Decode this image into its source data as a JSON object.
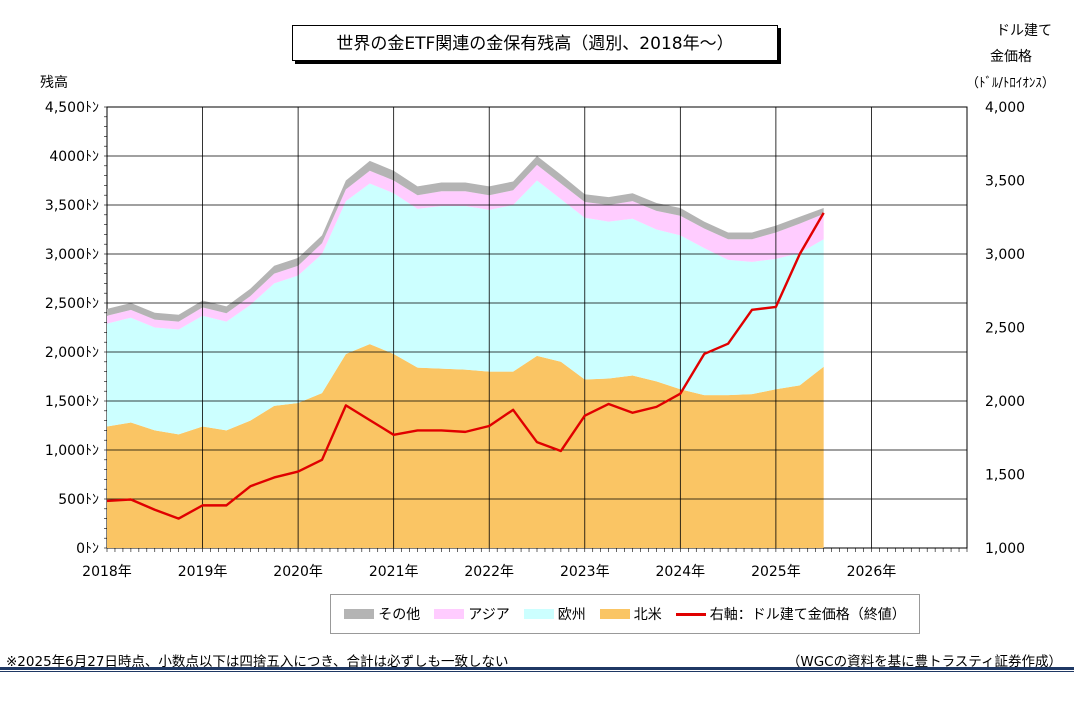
{
  "chart_data": {
    "type": "area",
    "title": "世界の金ETF関連の金保有残高（週別、2018年～）",
    "ylabel_left": "残高",
    "ylabel_right": [
      "ドル建て",
      "金価格",
      "（ﾄﾞﾙ/ﾄﾛｲｵﾝｽ）"
    ],
    "left_axis": {
      "range": [
        0,
        4500
      ],
      "ticks": [
        0,
        500,
        1000,
        1500,
        2000,
        2500,
        3000,
        3500,
        4000,
        4500
      ],
      "tick_labels": [
        "0ﾄﾝ",
        "500ﾄﾝ",
        "1,000ﾄﾝ",
        "1,500ﾄﾝ",
        "2,000ﾄﾝ",
        "2,500ﾄﾝ",
        "3,000ﾄﾝ",
        "3,500ﾄﾝ",
        "4000ﾄﾝ",
        "4,500ﾄﾝ"
      ]
    },
    "right_axis": {
      "range": [
        1000,
        4000
      ],
      "ticks": [
        1000,
        1500,
        2000,
        2500,
        3000,
        3500,
        4000
      ],
      "tick_labels": [
        "1,000",
        "1,500",
        "2,000",
        "2,500",
        "3,000",
        "3,500",
        "4,000"
      ]
    },
    "x_axis": {
      "range": [
        2018.0,
        2027.0
      ],
      "ticks": [
        2018,
        2019,
        2020,
        2021,
        2022,
        2023,
        2024,
        2025,
        2026,
        2027
      ],
      "tick_labels": [
        "2018年",
        "2019年",
        "2020年",
        "2021年",
        "2022年",
        "2023年",
        "2024年",
        "2025年",
        "2026年"
      ]
    },
    "grid": true,
    "legend_position": "bottom",
    "x": [
      2018.0,
      2018.25,
      2018.5,
      2018.75,
      2019.0,
      2019.25,
      2019.5,
      2019.75,
      2020.0,
      2020.25,
      2020.5,
      2020.75,
      2021.0,
      2021.25,
      2021.5,
      2021.75,
      2022.0,
      2022.25,
      2022.5,
      2022.75,
      2023.0,
      2023.25,
      2023.5,
      2023.75,
      2024.0,
      2024.25,
      2024.5,
      2024.75,
      2025.0,
      2025.25,
      2025.5
    ],
    "series": [
      {
        "name": "北米",
        "color": "#fac564",
        "values": [
          1240,
          1280,
          1200,
          1160,
          1240,
          1200,
          1300,
          1450,
          1480,
          1580,
          1980,
          2080,
          1980,
          1840,
          1830,
          1820,
          1800,
          1800,
          1960,
          1900,
          1720,
          1730,
          1760,
          1700,
          1620,
          1560,
          1560,
          1570,
          1620,
          1660,
          1850
        ]
      },
      {
        "name": "欧州",
        "color": "#ccffff",
        "values": [
          1050,
          1070,
          1050,
          1070,
          1130,
          1110,
          1180,
          1250,
          1300,
          1420,
          1560,
          1640,
          1640,
          1620,
          1660,
          1670,
          1650,
          1700,
          1790,
          1660,
          1650,
          1600,
          1600,
          1550,
          1570,
          1500,
          1380,
          1350,
          1330,
          1350,
          1300
        ]
      },
      {
        "name": "アジア",
        "color": "#ffccff",
        "values": [
          80,
          80,
          80,
          80,
          85,
          85,
          90,
          100,
          100,
          110,
          120,
          130,
          130,
          140,
          150,
          150,
          150,
          150,
          160,
          160,
          160,
          170,
          180,
          190,
          200,
          200,
          210,
          230,
          270,
          300,
          260
        ]
      },
      {
        "name": "その他",
        "color": "#b4b4b4",
        "values": [
          70,
          70,
          70,
          70,
          70,
          70,
          75,
          80,
          80,
          80,
          90,
          100,
          100,
          90,
          90,
          90,
          90,
          90,
          90,
          90,
          80,
          80,
          80,
          80,
          80,
          70,
          70,
          70,
          70,
          70,
          60
        ]
      },
      {
        "name": "右軸：ドル建て金価格（終値）",
        "color": "#e00000",
        "axis": "right",
        "values": [
          1320,
          1330,
          1260,
          1200,
          1290,
          1290,
          1420,
          1480,
          1520,
          1600,
          1970,
          1870,
          1770,
          1800,
          1800,
          1790,
          1830,
          1940,
          1720,
          1660,
          1900,
          1980,
          1920,
          1960,
          2050,
          2320,
          2390,
          2620,
          2640,
          3000,
          3280
        ]
      }
    ],
    "legend_order": [
      "その他",
      "アジア",
      "欧州",
      "北米",
      "右軸：ドル建て金価格（終値）"
    ]
  },
  "footnote_left": "※2025年6月27日時点、小数点以下は四捨五入につき、合計は必ずしも一致しない",
  "footnote_right": "（WGCの資料を基に豊トラスティ証券作成）"
}
